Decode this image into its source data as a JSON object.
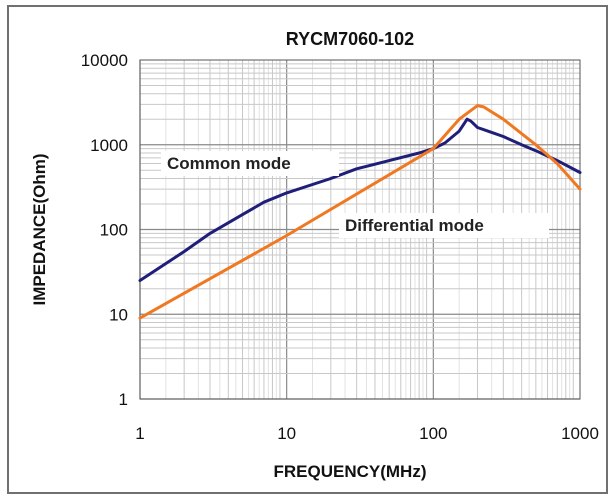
{
  "chart_data": {
    "type": "line",
    "title": "RYCM7060-102",
    "xlabel": "FREQUENCY(MHz)",
    "ylabel": "IMPEDANCE(Ohm)",
    "x_scale": "log",
    "y_scale": "log",
    "xlim": [
      1,
      1000
    ],
    "ylim": [
      1,
      10000
    ],
    "x_ticks": [
      1,
      10,
      100,
      1000
    ],
    "x_tick_labels": [
      "1",
      "10",
      "100",
      "1000"
    ],
    "y_ticks": [
      1,
      10,
      100,
      1000,
      10000
    ],
    "y_tick_labels": [
      "1",
      "10",
      "100",
      "1000",
      "10000"
    ],
    "grid": true,
    "legend": "none",
    "series": [
      {
        "name": "Common mode",
        "color": "#1f1f7a",
        "points": [
          [
            1,
            25
          ],
          [
            2,
            55
          ],
          [
            3,
            90
          ],
          [
            5,
            150
          ],
          [
            7,
            210
          ],
          [
            10,
            270
          ],
          [
            20,
            400
          ],
          [
            30,
            520
          ],
          [
            50,
            650
          ],
          [
            80,
            800
          ],
          [
            100,
            900
          ],
          [
            120,
            1050
          ],
          [
            150,
            1450
          ],
          [
            170,
            2000
          ],
          [
            180,
            1900
          ],
          [
            200,
            1600
          ],
          [
            250,
            1400
          ],
          [
            300,
            1250
          ],
          [
            400,
            1000
          ],
          [
            500,
            850
          ],
          [
            700,
            650
          ],
          [
            1000,
            470
          ]
        ]
      },
      {
        "name": "Differential mode",
        "color": "#f07820",
        "points": [
          [
            1,
            9
          ],
          [
            10,
            85
          ],
          [
            100,
            900
          ],
          [
            150,
            2000
          ],
          [
            200,
            2900
          ],
          [
            220,
            2800
          ],
          [
            300,
            2000
          ],
          [
            500,
            1000
          ],
          [
            700,
            600
          ],
          [
            1000,
            300
          ]
        ]
      }
    ]
  }
}
